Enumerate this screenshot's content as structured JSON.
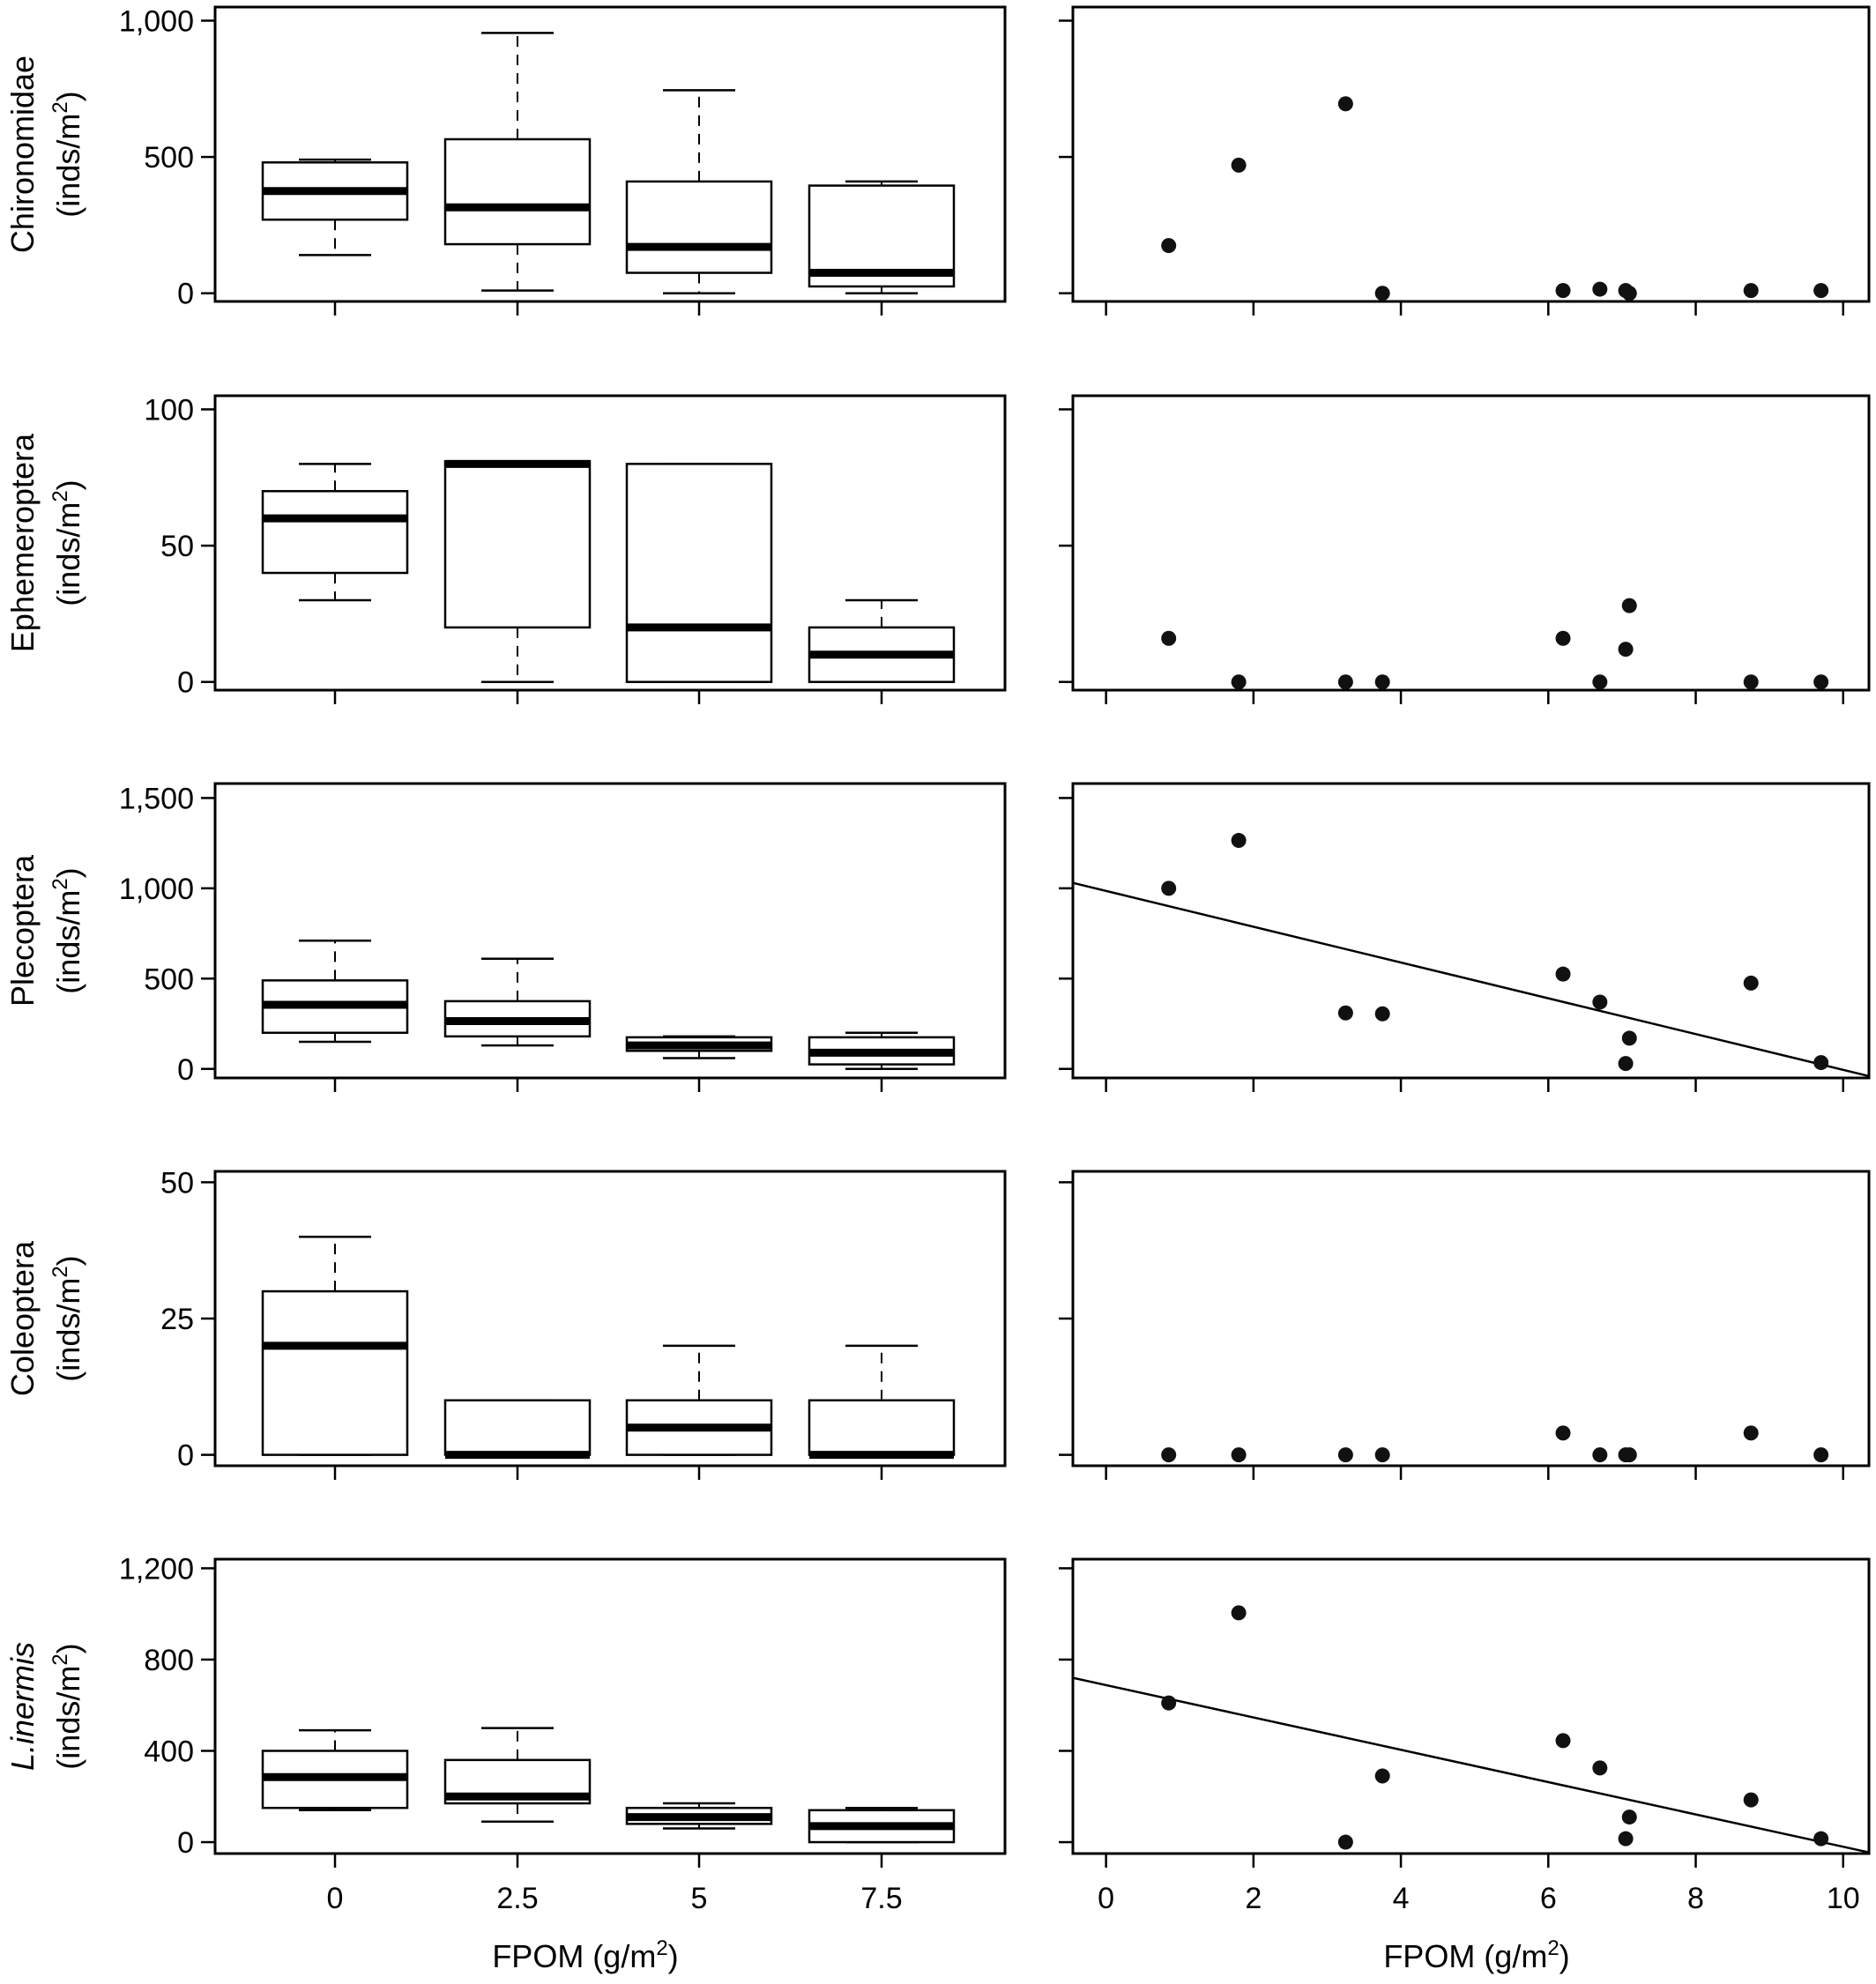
{
  "x_axis_label": {
    "text": "FPOM (g/m",
    "sup": "2",
    "close": ")"
  },
  "ylabel_unit": {
    "text": "(inds/m",
    "sup": "2",
    "close": ")"
  },
  "chart_data": [
    {
      "type": "box",
      "row": 0,
      "ylabel": "Chironomidae",
      "ylabel_italic": false,
      "categories": [
        "0",
        "2.5",
        "5",
        "7.5"
      ],
      "yticks": [
        0,
        500,
        1000
      ],
      "ytick_labels": [
        "0",
        "500",
        "1,000"
      ],
      "ylim": [
        -30,
        1050
      ],
      "boxes": [
        {
          "whisker_low": 140,
          "q1": 270,
          "median": 375,
          "q3": 480,
          "whisker_high": 490
        },
        {
          "whisker_low": 10,
          "q1": 180,
          "median": 315,
          "q3": 565,
          "whisker_high": 955
        },
        {
          "whisker_low": 0,
          "q1": 75,
          "median": 170,
          "q3": 410,
          "whisker_high": 745
        },
        {
          "whisker_low": 0,
          "q1": 25,
          "median": 75,
          "q3": 395,
          "whisker_high": 410
        }
      ]
    },
    {
      "type": "box",
      "row": 1,
      "ylabel": "Ephemeroptera",
      "ylabel_italic": false,
      "categories": [
        "0",
        "2.5",
        "5",
        "7.5"
      ],
      "yticks": [
        0,
        50,
        100
      ],
      "ytick_labels": [
        "0",
        "50",
        "100"
      ],
      "ylim": [
        -3,
        105
      ],
      "boxes": [
        {
          "whisker_low": 30,
          "q1": 40,
          "median": 60,
          "q3": 70,
          "whisker_high": 80
        },
        {
          "whisker_low": 0,
          "q1": 20,
          "median": 80,
          "q3": 81,
          "whisker_high": 81
        },
        {
          "whisker_low": 0,
          "q1": 0,
          "median": 20,
          "q3": 80,
          "whisker_high": 80
        },
        {
          "whisker_low": 0,
          "q1": 0,
          "median": 10,
          "q3": 20,
          "whisker_high": 30
        }
      ]
    },
    {
      "type": "box",
      "row": 2,
      "ylabel": "Plecoptera",
      "ylabel_italic": false,
      "categories": [
        "0",
        "2.5",
        "5",
        "7.5"
      ],
      "yticks": [
        0,
        500,
        1000,
        1500
      ],
      "ytick_labels": [
        "0",
        "500",
        "1,000",
        "1,500"
      ],
      "ylim": [
        -50,
        1580
      ],
      "boxes": [
        {
          "whisker_low": 150,
          "q1": 200,
          "median": 355,
          "q3": 490,
          "whisker_high": 710
        },
        {
          "whisker_low": 130,
          "q1": 180,
          "median": 265,
          "q3": 375,
          "whisker_high": 610
        },
        {
          "whisker_low": 60,
          "q1": 100,
          "median": 130,
          "q3": 175,
          "whisker_high": 180
        },
        {
          "whisker_low": 0,
          "q1": 25,
          "median": 90,
          "q3": 175,
          "whisker_high": 200
        }
      ]
    },
    {
      "type": "box",
      "row": 3,
      "ylabel": "Coleoptera",
      "ylabel_italic": false,
      "categories": [
        "0",
        "2.5",
        "5",
        "7.5"
      ],
      "yticks": [
        0,
        25,
        50
      ],
      "ytick_labels": [
        "0",
        "25",
        "50"
      ],
      "ylim": [
        -2,
        52
      ],
      "boxes": [
        {
          "whisker_low": 0,
          "q1": 0,
          "median": 20,
          "q3": 30,
          "whisker_high": 40
        },
        {
          "whisker_low": 0,
          "q1": 0,
          "median": 0,
          "q3": 10,
          "whisker_high": 10
        },
        {
          "whisker_low": 0,
          "q1": 0,
          "median": 5,
          "q3": 10,
          "whisker_high": 20
        },
        {
          "whisker_low": 0,
          "q1": 0,
          "median": 0,
          "q3": 10,
          "whisker_high": 20
        }
      ]
    },
    {
      "type": "box",
      "row": 4,
      "ylabel": "L.inermis",
      "ylabel_italic": true,
      "categories": [
        "0",
        "2.5",
        "5",
        "7.5"
      ],
      "yticks": [
        0,
        400,
        800,
        1200
      ],
      "ytick_labels": [
        "0",
        "400",
        "800",
        "1,200"
      ],
      "ylim": [
        -50,
        1240
      ],
      "boxes": [
        {
          "whisker_low": 140,
          "q1": 150,
          "median": 285,
          "q3": 400,
          "whisker_high": 490
        },
        {
          "whisker_low": 90,
          "q1": 170,
          "median": 200,
          "q3": 360,
          "whisker_high": 500
        },
        {
          "whisker_low": 60,
          "q1": 80,
          "median": 110,
          "q3": 150,
          "whisker_high": 170
        },
        {
          "whisker_low": 0,
          "q1": 0,
          "median": 70,
          "q3": 140,
          "whisker_high": 150
        }
      ]
    },
    {
      "type": "scatter",
      "row": 0,
      "xlim": [
        -0.45,
        10.35
      ],
      "xticks": [
        0,
        2,
        4,
        6,
        8,
        10
      ],
      "ylim": [
        -30,
        1050
      ],
      "yticks": [
        0,
        500,
        1000
      ],
      "x": [
        0.85,
        1.8,
        3.25,
        3.75,
        6.2,
        6.7,
        7.05,
        7.1,
        8.75,
        9.7
      ],
      "y": [
        175,
        470,
        695,
        0,
        10,
        15,
        10,
        0,
        10,
        10
      ]
    },
    {
      "type": "scatter",
      "row": 1,
      "xlim": [
        -0.45,
        10.35
      ],
      "xticks": [
        0,
        2,
        4,
        6,
        8,
        10
      ],
      "ylim": [
        -3,
        105
      ],
      "yticks": [
        0,
        50,
        100
      ],
      "x": [
        0.85,
        1.8,
        3.25,
        3.75,
        6.2,
        6.7,
        7.05,
        7.1,
        8.75,
        9.7
      ],
      "y": [
        16,
        0,
        0,
        0,
        16,
        0,
        12,
        28,
        0,
        0
      ]
    },
    {
      "type": "scatter",
      "row": 2,
      "xlim": [
        -0.45,
        10.35
      ],
      "xticks": [
        0,
        2,
        4,
        6,
        8,
        10
      ],
      "ylim": [
        -50,
        1580
      ],
      "yticks": [
        0,
        500,
        1000,
        1500
      ],
      "x": [
        0.85,
        1.8,
        3.25,
        3.75,
        6.2,
        6.7,
        7.05,
        7.1,
        8.75,
        9.7
      ],
      "y": [
        1000,
        1265,
        310,
        305,
        525,
        370,
        30,
        170,
        475,
        35
      ],
      "fit_line": {
        "x": [
          -0.45,
          10.35
        ],
        "y": [
          1030,
          -40
        ]
      }
    },
    {
      "type": "scatter",
      "row": 3,
      "xlim": [
        -0.45,
        10.35
      ],
      "xticks": [
        0,
        2,
        4,
        6,
        8,
        10
      ],
      "ylim": [
        -2,
        52
      ],
      "yticks": [
        0,
        25,
        50
      ],
      "x": [
        0.85,
        1.8,
        3.25,
        3.75,
        6.2,
        6.7,
        7.05,
        7.1,
        8.75,
        9.7
      ],
      "y": [
        0,
        0,
        0,
        0,
        4,
        0,
        0,
        0,
        4,
        0
      ]
    },
    {
      "type": "scatter",
      "row": 4,
      "xlim": [
        -0.45,
        10.35
      ],
      "xticks": [
        0,
        2,
        4,
        6,
        8,
        10
      ],
      "ylim": [
        -50,
        1240
      ],
      "yticks": [
        0,
        400,
        800,
        1200
      ],
      "x": [
        0.85,
        1.8,
        3.25,
        3.75,
        6.2,
        6.7,
        7.05,
        7.1,
        8.75,
        9.7
      ],
      "y": [
        610,
        1005,
        0,
        290,
        445,
        325,
        15,
        110,
        185,
        15
      ],
      "fit_line": {
        "x": [
          -0.45,
          10.35
        ],
        "y": [
          720,
          -45
        ]
      }
    }
  ]
}
